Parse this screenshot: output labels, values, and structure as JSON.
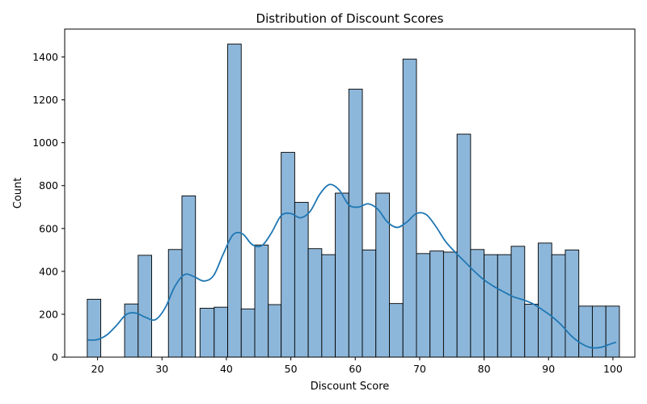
{
  "chart_data": {
    "type": "bar",
    "title": "Distribution of Discount Scores",
    "xlabel": "Discount Score",
    "ylabel": "Count",
    "xlim": [
      14.9,
      103.4
    ],
    "ylim": [
      0,
      1530
    ],
    "xticks": [
      20,
      30,
      40,
      50,
      60,
      70,
      80,
      90,
      100
    ],
    "yticks": [
      0,
      200,
      400,
      600,
      800,
      1000,
      1200,
      1400
    ],
    "grid": false,
    "bar_color": "#8db7da",
    "edge_color": "#000000",
    "kde_color": "#1f77b4",
    "bins": [
      {
        "x0": 18.4,
        "x1": 20.5,
        "count": 270
      },
      {
        "x0": 24.2,
        "x1": 26.3,
        "count": 248
      },
      {
        "x0": 26.3,
        "x1": 28.4,
        "count": 475
      },
      {
        "x0": 31.0,
        "x1": 33.1,
        "count": 502
      },
      {
        "x0": 33.1,
        "x1": 35.2,
        "count": 752
      },
      {
        "x0": 35.9,
        "x1": 38.1,
        "count": 228
      },
      {
        "x0": 38.1,
        "x1": 40.2,
        "count": 233
      },
      {
        "x0": 40.2,
        "x1": 42.3,
        "count": 1460
      },
      {
        "x0": 42.3,
        "x1": 44.4,
        "count": 225
      },
      {
        "x0": 44.4,
        "x1": 46.5,
        "count": 523
      },
      {
        "x0": 46.5,
        "x1": 48.5,
        "count": 245
      },
      {
        "x0": 48.5,
        "x1": 50.6,
        "count": 955
      },
      {
        "x0": 50.6,
        "x1": 52.7,
        "count": 722
      },
      {
        "x0": 52.7,
        "x1": 54.8,
        "count": 506
      },
      {
        "x0": 54.8,
        "x1": 56.9,
        "count": 478
      },
      {
        "x0": 56.9,
        "x1": 59.0,
        "count": 765
      },
      {
        "x0": 59.0,
        "x1": 61.1,
        "count": 1250
      },
      {
        "x0": 61.1,
        "x1": 63.2,
        "count": 500
      },
      {
        "x0": 63.2,
        "x1": 65.3,
        "count": 765
      },
      {
        "x0": 65.3,
        "x1": 67.4,
        "count": 250
      },
      {
        "x0": 67.4,
        "x1": 69.5,
        "count": 1390
      },
      {
        "x0": 69.5,
        "x1": 71.6,
        "count": 483
      },
      {
        "x0": 71.6,
        "x1": 73.7,
        "count": 495
      },
      {
        "x0": 73.7,
        "x1": 75.8,
        "count": 490
      },
      {
        "x0": 75.8,
        "x1": 77.9,
        "count": 1040
      },
      {
        "x0": 77.9,
        "x1": 80.0,
        "count": 502
      },
      {
        "x0": 80.0,
        "x1": 82.1,
        "count": 478
      },
      {
        "x0": 82.1,
        "x1": 84.2,
        "count": 478
      },
      {
        "x0": 84.2,
        "x1": 86.3,
        "count": 517
      },
      {
        "x0": 86.3,
        "x1": 88.4,
        "count": 247
      },
      {
        "x0": 88.4,
        "x1": 90.5,
        "count": 532
      },
      {
        "x0": 90.5,
        "x1": 92.6,
        "count": 478
      },
      {
        "x0": 92.6,
        "x1": 94.7,
        "count": 500
      },
      {
        "x0": 94.7,
        "x1": 96.8,
        "count": 238
      },
      {
        "x0": 96.8,
        "x1": 98.9,
        "count": 238
      },
      {
        "x0": 98.9,
        "x1": 101.0,
        "count": 238
      }
    ],
    "kde": {
      "x": [
        18.5,
        20,
        21.5,
        23,
        24.5,
        26,
        27.5,
        29,
        30.5,
        32,
        33.5,
        35,
        36.5,
        38,
        39.5,
        41,
        42.5,
        44,
        45.5,
        47,
        48.5,
        50,
        51.5,
        53,
        54.5,
        56,
        57.5,
        59,
        60.5,
        62,
        63.5,
        65,
        66.5,
        68,
        69.5,
        71,
        72.5,
        74,
        75.5,
        77,
        78.5,
        80,
        81.5,
        83,
        84.5,
        86,
        87.5,
        89,
        90.5,
        92,
        93.5,
        95,
        96.5,
        98,
        99.5,
        100.5
      ],
      "y": [
        80,
        82,
        105,
        150,
        200,
        205,
        185,
        175,
        230,
        330,
        385,
        375,
        355,
        380,
        480,
        570,
        575,
        525,
        520,
        580,
        660,
        670,
        650,
        680,
        760,
        805,
        780,
        710,
        700,
        715,
        690,
        630,
        605,
        630,
        670,
        665,
        610,
        540,
        490,
        445,
        400,
        360,
        330,
        305,
        282,
        268,
        250,
        222,
        190,
        150,
        100,
        65,
        45,
        45,
        60,
        70
      ]
    }
  }
}
